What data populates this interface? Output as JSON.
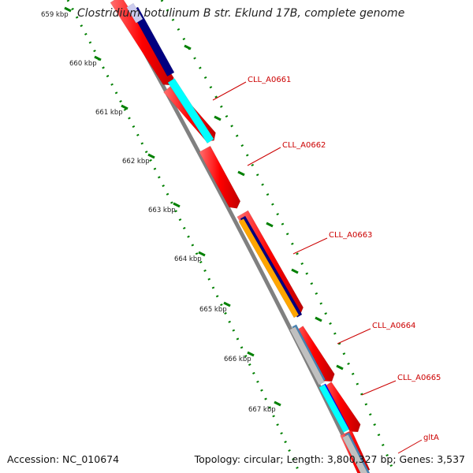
{
  "title": "Clostridium botulinum B str. Eklund 17B, complete genome",
  "accession_text": "Accession: NC_010674",
  "summary_text": "Topology: circular; Length: 3,800,327 bp; Genes: 3,537",
  "scale_labels": [
    "659 kbp",
    "660 kbp",
    "661 kbp",
    "662 kbp",
    "663 kbp",
    "664 kbp",
    "665 kbp",
    "666 kbp",
    "667 kbp"
  ],
  "gene_labels": [
    "CLL_A0661",
    "CLL_A0662",
    "CLL_A0663",
    "CLL_A0664",
    "CLL_A0665",
    "gltA"
  ],
  "colors": {
    "cds": "#ff0000",
    "backbone": "#808080",
    "scale_ticks": "#008000",
    "label": "#cc0000",
    "navy": "#000080",
    "cyan": "#00ffff",
    "orange": "#ffa500",
    "steelblue": "#4682b4",
    "lightgray": "#c0c0c0",
    "blue": "#0000ff",
    "lavender": "#ccccee"
  }
}
